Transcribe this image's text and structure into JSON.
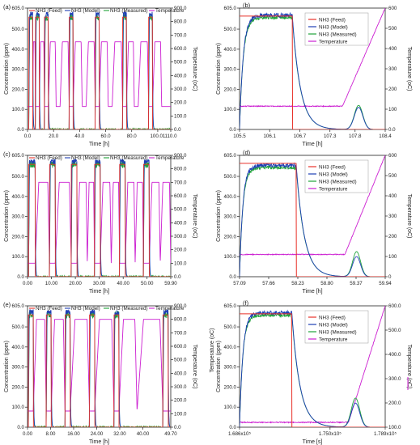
{
  "figure": {
    "colors": {
      "feed": "#e8322a",
      "model": "#1f3fb5",
      "measured": "#1fa33a",
      "temperature": "#cc1fd1"
    }
  },
  "chart_data": [
    {
      "panel": "(a)",
      "type": "line",
      "legend_style": "top",
      "xlabel": "Time [h]",
      "ylabel": "Concentration (ppm)",
      "y2label": "Temperature (oC)",
      "xticks": [
        "0.0",
        "20.0",
        "40.0",
        "60.0",
        "80.0",
        "100.01",
        "110.0"
      ],
      "xlim": [
        0,
        110
      ],
      "yticks": [
        "0.0",
        "100.0",
        "200.0",
        "300.0",
        "400.0",
        "500.0",
        "605.0"
      ],
      "y2ticks": [
        "0.0",
        "100.0",
        "200.0",
        "300.0",
        "400.0",
        "500.0",
        "600.0",
        "700.0",
        "800.0",
        "900.0"
      ],
      "ylim": [
        0,
        605
      ],
      "y2lim": [
        0,
        900
      ],
      "legend": [
        "NH3 (Feed)",
        "NH3 (Model)",
        "NH3 (Measured)",
        "Temperature"
      ],
      "pulses": [
        [
          1,
          4
        ],
        [
          6,
          9
        ],
        [
          13,
          16
        ],
        [
          32,
          35
        ],
        [
          52,
          55
        ],
        [
          73,
          76
        ],
        [
          93,
          96
        ]
      ],
      "temp_cycles": [
        [
          4,
          6
        ],
        [
          9,
          13
        ],
        [
          16,
          22
        ],
        [
          25,
          32
        ],
        [
          35,
          42
        ],
        [
          45,
          52
        ],
        [
          55,
          62
        ],
        [
          65,
          73
        ],
        [
          76,
          82
        ],
        [
          85,
          93
        ],
        [
          96,
          103
        ]
      ],
      "temp_base": 170,
      "temp_max": 650
    },
    {
      "panel": "(b)",
      "type": "line",
      "legend_style": "box",
      "xlabel": "Time [h]",
      "ylabel": "Concentration (ppm)",
      "y2label": "Temperature (oC)",
      "xticks": [
        "105.5",
        "106.1",
        "106.7",
        "107.3",
        "107.8",
        "108.4"
      ],
      "xlim": [
        105.5,
        108.4
      ],
      "yticks": [
        "0.0",
        "100.0",
        "200.0",
        "300.0",
        "400.0",
        "500.0",
        "605.0"
      ],
      "y2ticks": [
        "0.0",
        "100",
        "200",
        "300",
        "400",
        "500",
        "600"
      ],
      "ylim": [
        0,
        605
      ],
      "y2lim": [
        0,
        600
      ],
      "legend": [
        "NH3 (Feed)",
        "NH3 (Model)",
        "NH3 (Measured)",
        "Temperature"
      ],
      "feed_on": [
        105.5,
        106.55
      ],
      "feed_level": 565,
      "conc_level": 570,
      "decay_rate": 9,
      "rise_rate": 18,
      "tpd_peak": {
        "x": 107.87,
        "model": 110,
        "measured": 120,
        "width": 0.12
      },
      "temp_points": [
        [
          105.5,
          115
        ],
        [
          107.55,
          115
        ],
        [
          108.4,
          600
        ]
      ]
    },
    {
      "panel": "(c)",
      "type": "line",
      "legend_style": "top",
      "xlabel": "Time [h]",
      "ylabel": "Concentration (ppm)",
      "y2label": "Temperature (oC)",
      "xticks": [
        "0.00",
        "10.00",
        "20.00",
        "30.00",
        "40.00",
        "50.00",
        "59.90"
      ],
      "xlim": [
        0,
        59.9
      ],
      "yticks": [
        "0.0",
        "100.0",
        "200.0",
        "300.0",
        "400.0",
        "500.0",
        "605.0"
      ],
      "y2ticks": [
        "0.0",
        "100.0",
        "200.0",
        "300.0",
        "400.0",
        "500.0",
        "600.0",
        "700.0",
        "800.0",
        "900.0"
      ],
      "ylim": [
        0,
        605
      ],
      "y2lim": [
        0,
        900
      ],
      "legend": [
        "NH3 (Feed)",
        "NH3 (Model)",
        "NH3 (Measured)",
        "Temperature"
      ],
      "pulses": [
        [
          0.5,
          3.2
        ],
        [
          9.2,
          11.6
        ],
        [
          18.3,
          20.7
        ],
        [
          28.0,
          30.4
        ],
        [
          38.5,
          40.9
        ],
        [
          48.5,
          50.9
        ]
      ],
      "temp_cycles": [
        [
          3.2,
          9.2
        ],
        [
          11.6,
          18.3
        ],
        [
          20.7,
          25.0
        ],
        [
          25.0,
          28.0
        ],
        [
          30.4,
          35.0
        ],
        [
          35.0,
          38.5
        ],
        [
          40.9,
          45.0
        ],
        [
          45.0,
          48.5
        ],
        [
          50.9,
          55.5
        ],
        [
          55.5,
          59.9
        ]
      ],
      "temp_base": 100,
      "temp_max": 700
    },
    {
      "panel": "(d)",
      "type": "line",
      "legend_style": "box",
      "xlabel": "Time [h]",
      "ylabel": "Concentration (ppm)",
      "y2label": "Temperature (oC)",
      "xticks": [
        "57.09",
        "57.66",
        "58.23",
        "58.80",
        "59.37",
        "59.94"
      ],
      "xlim": [
        57.09,
        59.94
      ],
      "yticks": [
        "0.0",
        "100.0",
        "200.0",
        "300.0",
        "400.0",
        "500.0",
        "605.0"
      ],
      "y2ticks": [
        "0",
        "100",
        "200",
        "300",
        "400",
        "500",
        "600"
      ],
      "ylim": [
        0,
        605
      ],
      "y2lim": [
        0,
        600
      ],
      "legend": [
        "NH3 (Feed)",
        "NH3 (Model)",
        "NH3 (Measured)",
        "Temperature"
      ],
      "feed_on": [
        57.09,
        58.2
      ],
      "feed_level": 565,
      "conc_level": 555,
      "decay_rate": 9,
      "rise_rate": 20,
      "tpd_peak": {
        "x": 59.38,
        "model": 100,
        "measured": 125,
        "width": 0.11
      },
      "temp_points": [
        [
          57.09,
          110
        ],
        [
          59.15,
          110
        ],
        [
          59.94,
          600
        ]
      ]
    },
    {
      "panel": "(e)",
      "type": "line",
      "legend_style": "top",
      "xlabel": "Time [h]",
      "ylabel": "Concentration (ppm)",
      "y2label": "Temperature (oC)",
      "xticks": [
        "0.00",
        "8.00",
        "16.00",
        "24.00",
        "32.00",
        "40.00",
        "49.70"
      ],
      "xlim": [
        0,
        49.7
      ],
      "yticks": [
        "0.0",
        "100.0",
        "200.0",
        "300.0",
        "400.0",
        "500.0",
        "605.0"
      ],
      "y2ticks": [
        "0.0",
        "100.0",
        "200.0",
        "300.0",
        "400.0",
        "500.0",
        "600.0",
        "700.0",
        "800.0",
        "900.0"
      ],
      "ylim": [
        0,
        605
      ],
      "y2lim": [
        0,
        900
      ],
      "legend": [
        "NH3 (Feed)",
        "NH3 (Model)",
        "NH3 (Measured)",
        "Temperature"
      ],
      "pulses": [
        [
          0.3,
          2.0
        ],
        [
          6.5,
          8.2
        ],
        [
          13.0,
          14.8
        ],
        [
          21.5,
          23.3
        ],
        [
          30.0,
          31.7
        ],
        [
          47.0,
          48.8
        ]
      ],
      "temp_cycles": [
        [
          2.0,
          6.5
        ],
        [
          8.2,
          13.0
        ],
        [
          14.8,
          21.5
        ],
        [
          23.3,
          30.0
        ],
        [
          31.7,
          38.0
        ],
        [
          38.0,
          47.0
        ]
      ],
      "temp_base": 120,
      "temp_max": 800
    },
    {
      "panel": "(f)",
      "type": "line",
      "legend_style": "box",
      "xlabel": "Time [s]",
      "ylabel": "Concentration (ppm)",
      "y2label": "Temperature (oC)",
      "extra_ylabel": "Temperature (oC)",
      "xticks": [
        "1.686x10⁵",
        "1.750x10⁵",
        "1.789x10⁵"
      ],
      "xtick_positions": [
        168600,
        175000,
        178900
      ],
      "xlim": [
        168600,
        178900
      ],
      "yticks": [
        "0.0",
        "100.0",
        "200.0",
        "300.0",
        "400.0",
        "500.0",
        "605.0"
      ],
      "y2ticks": [
        "100.0",
        "200.0",
        "300.0",
        "400.0",
        "500.0",
        "600.0"
      ],
      "ylim": [
        0,
        605
      ],
      "y2lim": [
        100,
        600
      ],
      "legend": [
        "NH3 (Feed)",
        "NH3 (Model)",
        "NH3 (Measured)",
        "Temperature"
      ],
      "feed_on": [
        168600,
        172300
      ],
      "feed_level": 565,
      "conc_level": 570,
      "decay_rate": 9,
      "rise_rate": 20,
      "tpd_peak": {
        "x": 176800,
        "model": 120,
        "measured": 145,
        "width": 420
      },
      "temp_points": [
        [
          168600,
          120
        ],
        [
          176300,
          120
        ],
        [
          178900,
          600
        ]
      ]
    }
  ]
}
